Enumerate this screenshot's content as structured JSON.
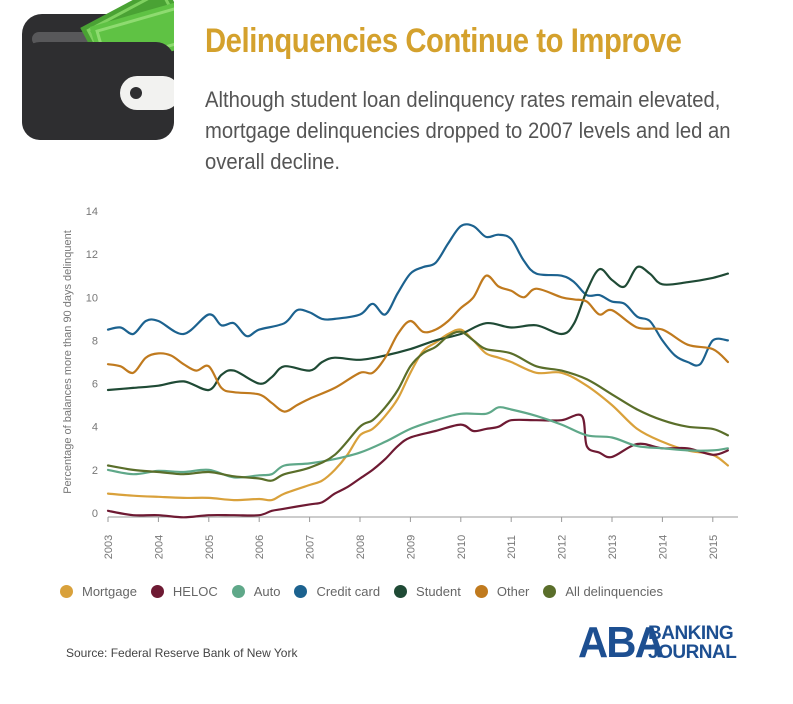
{
  "header": {
    "title": "Delinquencies Continue to Improve",
    "subtitle": "Although student loan delinquency rates remain elevated, mortgage delinquencies dropped to 2007 levels and led an overall decline."
  },
  "footer": {
    "source": "Source: Federal Reserve Bank of New York",
    "logo_text": "ABA BANKING JOURNAL",
    "logo_abbr": "ABA",
    "logo_line1": "BANKING",
    "logo_line2": "JOURNAL"
  },
  "colors": {
    "title": "#d4a12d",
    "logo": "#1d4f91"
  },
  "chart_data": {
    "type": "line",
    "ylabel": "Percentage of balances more than 90 days delinquent",
    "ylim": [
      0,
      14
    ],
    "yticks": [
      0,
      2,
      4,
      6,
      8,
      10,
      12,
      14
    ],
    "xlim": [
      2003.0,
      2015.5
    ],
    "xticks": [
      "2003",
      "2004",
      "2005",
      "2006",
      "2007",
      "2008",
      "2009",
      "2010",
      "2011",
      "2012",
      "2013",
      "2014",
      "2015"
    ],
    "grid": false,
    "legend_position": "bottom",
    "series": [
      {
        "name": "Mortgage",
        "color": "#d9a13b",
        "x": [
          2003.0,
          2003.5,
          2004.0,
          2004.5,
          2005.0,
          2005.5,
          2006.0,
          2006.25,
          2006.5,
          2007.0,
          2007.25,
          2007.5,
          2007.75,
          2008.0,
          2008.25,
          2008.5,
          2008.75,
          2009.0,
          2009.25,
          2009.5,
          2009.75,
          2010.0,
          2010.25,
          2010.5,
          2010.75,
          2011.0,
          2011.5,
          2012.0,
          2012.5,
          2013.0,
          2013.5,
          2014.0,
          2014.5,
          2015.0,
          2015.3
        ],
        "y": [
          0.9,
          0.8,
          0.75,
          0.7,
          0.7,
          0.6,
          0.65,
          0.6,
          0.9,
          1.3,
          1.5,
          2.0,
          2.7,
          3.6,
          3.9,
          4.5,
          5.3,
          6.5,
          7.5,
          7.9,
          8.3,
          8.5,
          8.0,
          7.4,
          7.2,
          7.0,
          6.5,
          6.5,
          5.9,
          5.0,
          3.9,
          3.3,
          2.9,
          2.7,
          2.2
        ]
      },
      {
        "name": "HELOC",
        "color": "#6e1a33",
        "x": [
          2003.0,
          2003.5,
          2004.0,
          2004.5,
          2005.0,
          2005.5,
          2006.0,
          2006.25,
          2006.5,
          2007.0,
          2007.25,
          2007.5,
          2007.75,
          2008.0,
          2008.25,
          2008.5,
          2008.75,
          2009.0,
          2009.5,
          2010.0,
          2010.25,
          2010.5,
          2010.75,
          2011.0,
          2011.5,
          2012.0,
          2012.4,
          2012.5,
          2012.75,
          2013.0,
          2013.5,
          2014.0,
          2014.5,
          2015.0,
          2015.3
        ],
        "y": [
          0.1,
          -0.1,
          -0.1,
          -0.2,
          -0.1,
          -0.1,
          -0.1,
          0.1,
          0.2,
          0.4,
          0.5,
          0.9,
          1.2,
          1.6,
          2.0,
          2.5,
          3.1,
          3.5,
          3.8,
          4.1,
          3.8,
          3.9,
          4.0,
          4.3,
          4.3,
          4.3,
          4.5,
          3.1,
          2.8,
          2.6,
          3.2,
          3.0,
          3.0,
          2.7,
          2.9
        ]
      },
      {
        "name": "Auto",
        "color": "#5fa889",
        "x": [
          2003.0,
          2003.5,
          2004.0,
          2004.5,
          2005.0,
          2005.5,
          2006.0,
          2006.25,
          2006.5,
          2007.0,
          2007.5,
          2008.0,
          2008.5,
          2009.0,
          2009.5,
          2010.0,
          2010.5,
          2010.75,
          2011.0,
          2011.5,
          2012.0,
          2012.5,
          2013.0,
          2013.5,
          2014.0,
          2014.5,
          2015.0,
          2015.3
        ],
        "y": [
          2.0,
          1.8,
          1.95,
          1.9,
          2.0,
          1.65,
          1.75,
          1.8,
          2.2,
          2.3,
          2.5,
          2.8,
          3.3,
          3.9,
          4.3,
          4.6,
          4.6,
          4.9,
          4.8,
          4.5,
          4.1,
          3.6,
          3.5,
          3.1,
          3.0,
          2.9,
          2.9,
          3.0
        ]
      },
      {
        "name": "Credit card",
        "color": "#1c628f",
        "x": [
          2003.0,
          2003.25,
          2003.5,
          2003.75,
          2004.0,
          2004.5,
          2005.0,
          2005.25,
          2005.5,
          2005.75,
          2006.0,
          2006.5,
          2006.75,
          2007.0,
          2007.25,
          2007.5,
          2008.0,
          2008.25,
          2008.5,
          2008.75,
          2009.0,
          2009.25,
          2009.5,
          2009.75,
          2010.0,
          2010.25,
          2010.5,
          2010.75,
          2011.0,
          2011.25,
          2011.5,
          2012.0,
          2012.25,
          2012.5,
          2012.75,
          2013.0,
          2013.25,
          2013.5,
          2013.75,
          2014.0,
          2014.25,
          2014.5,
          2014.75,
          2015.0,
          2015.3
        ],
        "y": [
          8.5,
          8.6,
          8.3,
          8.9,
          8.9,
          8.3,
          9.2,
          8.7,
          8.8,
          8.2,
          8.5,
          8.8,
          9.4,
          9.3,
          9.0,
          9.0,
          9.2,
          9.7,
          9.2,
          10.2,
          11.1,
          11.4,
          11.6,
          12.5,
          13.3,
          13.3,
          12.8,
          12.9,
          12.7,
          11.7,
          11.1,
          11.0,
          10.7,
          10.1,
          10.1,
          9.8,
          9.7,
          9.1,
          8.9,
          8.0,
          7.3,
          7.0,
          6.9,
          8.0,
          8.0
        ]
      },
      {
        "name": "Student",
        "color": "#1f4a35",
        "x": [
          2003.0,
          2003.5,
          2004.0,
          2004.5,
          2005.0,
          2005.25,
          2005.5,
          2006.0,
          2006.25,
          2006.5,
          2007.0,
          2007.25,
          2007.5,
          2008.0,
          2008.5,
          2009.0,
          2009.5,
          2010.0,
          2010.5,
          2011.0,
          2011.5,
          2012.0,
          2012.25,
          2012.5,
          2012.75,
          2013.0,
          2013.25,
          2013.5,
          2013.75,
          2014.0,
          2014.5,
          2015.0,
          2015.3
        ],
        "y": [
          5.7,
          5.8,
          5.9,
          6.1,
          5.7,
          6.4,
          6.6,
          6.0,
          6.3,
          6.8,
          6.6,
          7.0,
          7.2,
          7.1,
          7.3,
          7.6,
          8.0,
          8.3,
          8.8,
          8.6,
          8.7,
          8.3,
          8.8,
          10.3,
          11.3,
          10.8,
          10.5,
          11.4,
          11.1,
          10.6,
          10.7,
          10.9,
          11.1
        ]
      },
      {
        "name": "Other",
        "color": "#c07a1e",
        "x": [
          2003.0,
          2003.25,
          2003.5,
          2003.75,
          2004.0,
          2004.25,
          2004.5,
          2004.75,
          2005.0,
          2005.25,
          2005.5,
          2006.0,
          2006.25,
          2006.5,
          2006.75,
          2007.0,
          2007.5,
          2008.0,
          2008.25,
          2008.5,
          2008.75,
          2009.0,
          2009.25,
          2009.5,
          2009.75,
          2010.0,
          2010.25,
          2010.5,
          2010.75,
          2011.0,
          2011.25,
          2011.5,
          2012.0,
          2012.25,
          2012.5,
          2012.75,
          2013.0,
          2013.5,
          2014.0,
          2014.5,
          2015.0,
          2015.3
        ],
        "y": [
          6.9,
          6.8,
          6.5,
          7.2,
          7.4,
          7.3,
          6.9,
          6.6,
          6.8,
          5.8,
          5.6,
          5.5,
          5.1,
          4.7,
          5.0,
          5.3,
          5.8,
          6.5,
          6.5,
          7.2,
          8.3,
          8.9,
          8.4,
          8.5,
          8.9,
          9.5,
          10.0,
          11.0,
          10.5,
          10.3,
          10.0,
          10.4,
          10.0,
          9.9,
          9.8,
          9.2,
          9.4,
          8.6,
          8.5,
          7.8,
          7.6,
          7.0
        ]
      },
      {
        "name": "All delinquencies",
        "color": "#5a6e2a",
        "x": [
          2003.0,
          2003.5,
          2004.0,
          2004.5,
          2005.0,
          2005.5,
          2006.0,
          2006.25,
          2006.5,
          2007.0,
          2007.5,
          2008.0,
          2008.25,
          2008.5,
          2008.75,
          2009.0,
          2009.25,
          2009.5,
          2009.75,
          2010.0,
          2010.25,
          2010.5,
          2011.0,
          2011.5,
          2012.0,
          2012.5,
          2013.0,
          2013.5,
          2014.0,
          2014.5,
          2015.0,
          2015.3
        ],
        "y": [
          2.2,
          2.0,
          1.9,
          1.8,
          1.9,
          1.7,
          1.6,
          1.5,
          1.8,
          2.1,
          2.7,
          4.0,
          4.3,
          4.9,
          5.7,
          6.8,
          7.4,
          7.7,
          8.2,
          8.4,
          8.0,
          7.6,
          7.4,
          6.8,
          6.6,
          6.2,
          5.5,
          4.8,
          4.3,
          4.0,
          3.9,
          3.6
        ]
      }
    ]
  }
}
